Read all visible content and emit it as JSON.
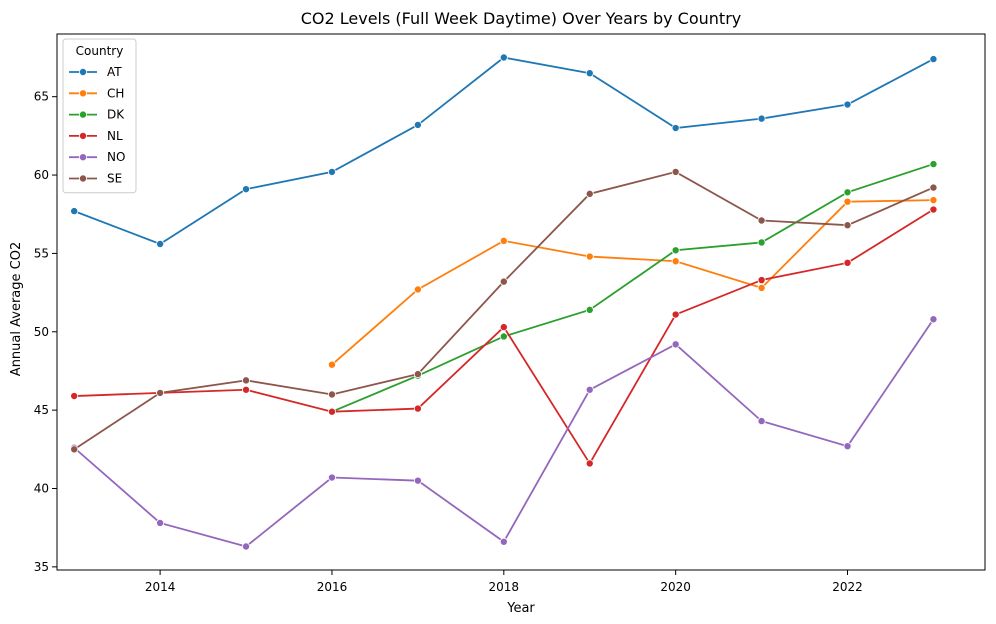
{
  "chart_data": {
    "type": "line",
    "title": "CO2 Levels (Full Week Daytime) Over Years by Country",
    "xlabel": "Year",
    "ylabel": "Annual Average CO2",
    "xlim": [
      2012.8,
      2023.6
    ],
    "ylim": [
      34.8,
      69.0
    ],
    "xticks": [
      2014,
      2016,
      2018,
      2020,
      2022
    ],
    "yticks": [
      35,
      40,
      45,
      50,
      55,
      60,
      65
    ],
    "grid": false,
    "legend": {
      "title": "Country",
      "position": "top-left"
    },
    "series": [
      {
        "name": "AT",
        "color": "#1f77b4",
        "x": [
          2013,
          2014,
          2015,
          2016,
          2017,
          2018,
          2019,
          2020,
          2021,
          2022,
          2023
        ],
        "y": [
          57.7,
          55.6,
          59.1,
          60.2,
          63.2,
          67.5,
          66.5,
          63.0,
          63.6,
          64.5,
          67.4
        ]
      },
      {
        "name": "CH",
        "color": "#ff7f0e",
        "x": [
          2016,
          2017,
          2018,
          2019,
          2020,
          2021,
          2022,
          2023
        ],
        "y": [
          47.9,
          52.7,
          55.8,
          54.8,
          54.5,
          52.8,
          58.3,
          58.4
        ]
      },
      {
        "name": "DK",
        "color": "#2ca02c",
        "x": [
          2016,
          2017,
          2018,
          2019,
          2020,
          2021,
          2022,
          2023
        ],
        "y": [
          44.9,
          47.2,
          49.7,
          51.4,
          55.2,
          55.7,
          58.9,
          60.7
        ]
      },
      {
        "name": "NL",
        "color": "#d62728",
        "x": [
          2013,
          2014,
          2015,
          2016,
          2017,
          2018,
          2019,
          2020,
          2021,
          2022,
          2023
        ],
        "y": [
          45.9,
          46.1,
          46.3,
          44.9,
          45.1,
          50.3,
          41.6,
          51.1,
          53.3,
          54.4,
          57.8
        ]
      },
      {
        "name": "NO",
        "color": "#9467bd",
        "x": [
          2013,
          2014,
          2015,
          2016,
          2017,
          2018,
          2019,
          2020,
          2021,
          2022,
          2023
        ],
        "y": [
          42.6,
          37.8,
          36.3,
          40.7,
          40.5,
          36.6,
          46.3,
          49.2,
          44.3,
          42.7,
          50.8
        ]
      },
      {
        "name": "SE",
        "color": "#8c564b",
        "x": [
          2013,
          2014,
          2015,
          2016,
          2017,
          2018,
          2019,
          2020,
          2021,
          2022,
          2023
        ],
        "y": [
          42.5,
          46.1,
          46.9,
          46.0,
          47.3,
          53.2,
          58.8,
          60.2,
          57.1,
          56.8,
          59.2
        ]
      }
    ]
  }
}
